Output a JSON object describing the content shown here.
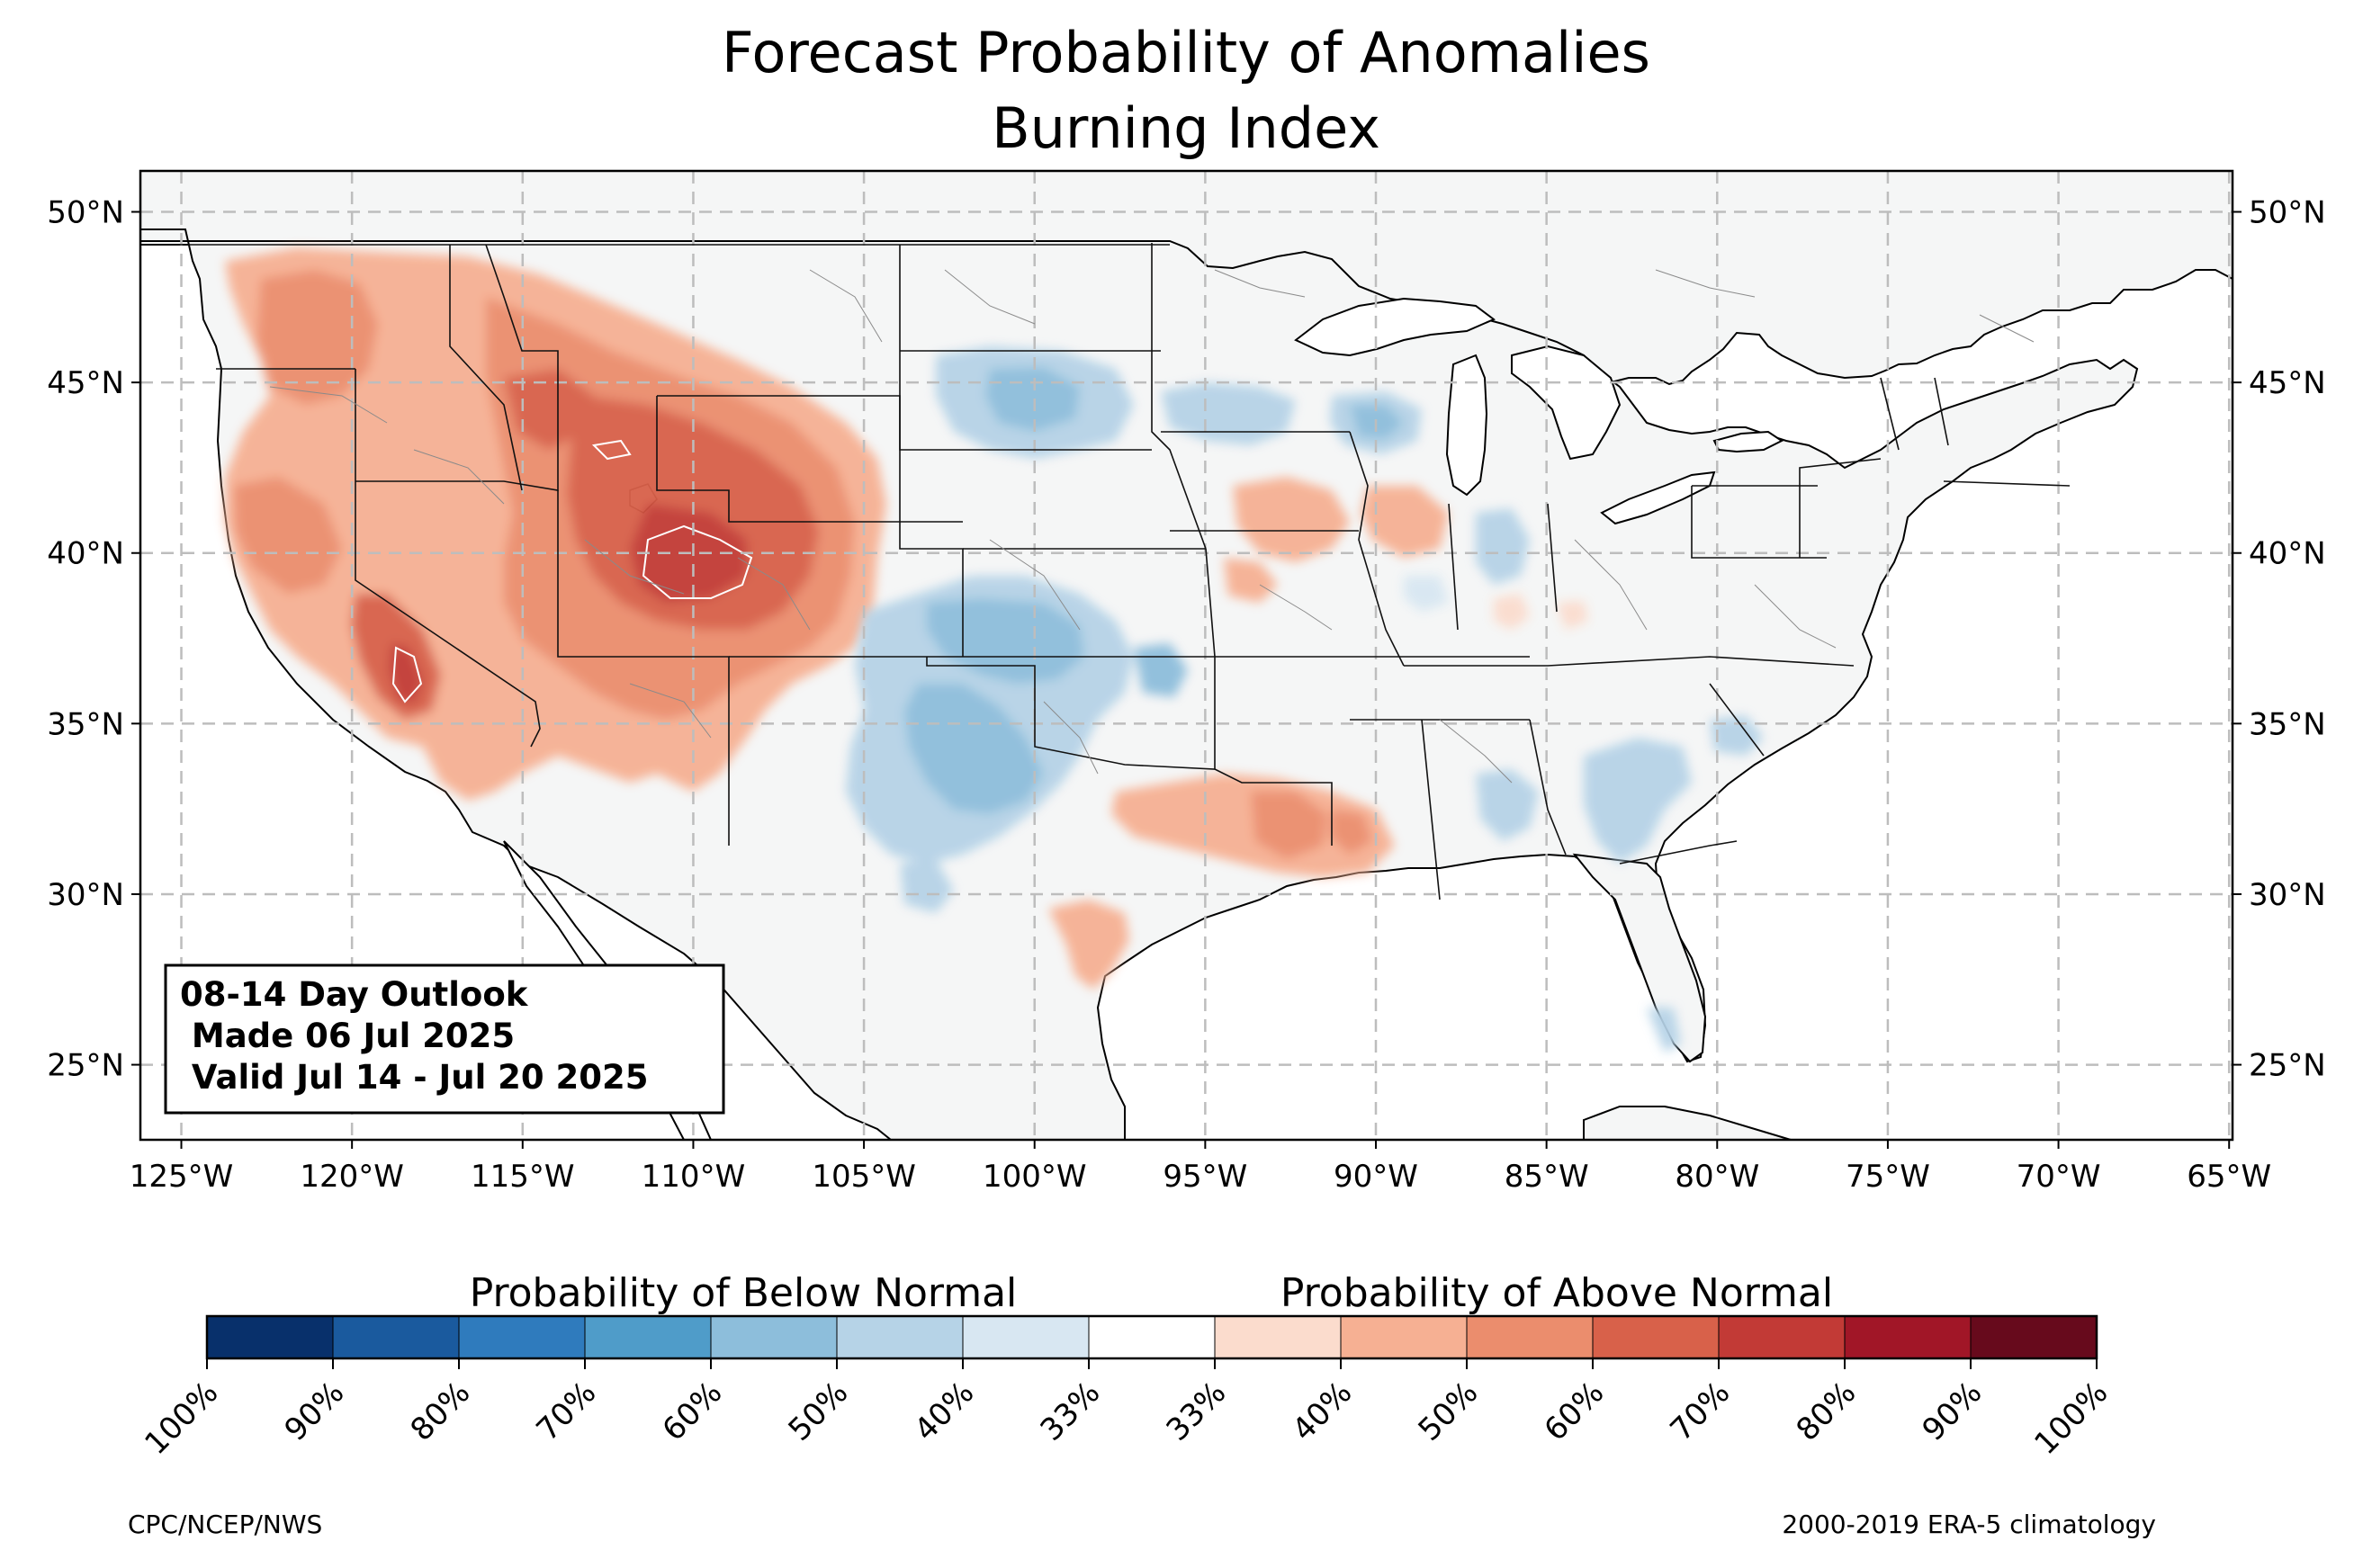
{
  "title_line1": "Forecast Probability of Anomalies",
  "title_line2": "Burning Index",
  "map": {
    "lon_range": [
      -126.2,
      -64.9
    ],
    "lat_range": [
      22.8,
      51.2
    ],
    "lon_ticks": [
      {
        "value": -125,
        "label": "125°W"
      },
      {
        "value": -120,
        "label": "120°W"
      },
      {
        "value": -115,
        "label": "115°W"
      },
      {
        "value": -110,
        "label": "110°W"
      },
      {
        "value": -105,
        "label": "105°W"
      },
      {
        "value": -100,
        "label": "100°W"
      },
      {
        "value": -95,
        "label": "95°W"
      },
      {
        "value": -90,
        "label": "90°W"
      },
      {
        "value": -85,
        "label": "85°W"
      },
      {
        "value": -80,
        "label": "80°W"
      },
      {
        "value": -75,
        "label": "75°W"
      },
      {
        "value": -70,
        "label": "70°W"
      },
      {
        "value": -65,
        "label": "65°W"
      }
    ],
    "lat_ticks": [
      {
        "value": 50,
        "label": "50°N"
      },
      {
        "value": 45,
        "label": "45°N"
      },
      {
        "value": 40,
        "label": "40°N"
      },
      {
        "value": 35,
        "label": "35°N"
      },
      {
        "value": 30,
        "label": "30°N"
      },
      {
        "value": 25,
        "label": "25°N"
      }
    ],
    "gridlines": true,
    "land_color": "#f5f6f6",
    "above_normal_areas": [
      {
        "region": "Pacific Northwest / Oregon",
        "lon": -119.5,
        "lat": 44.5,
        "probability": "40-60%"
      },
      {
        "region": "Idaho / Montana",
        "lon": -114,
        "lat": 45.5,
        "probability": "40-60%"
      },
      {
        "region": "Northern California / Nevada",
        "lon": -120,
        "lat": 40,
        "probability": "40-60%"
      },
      {
        "region": "Southern Sierra Nevada",
        "lon": -118.5,
        "lat": 36.3,
        "probability": "60-80%"
      },
      {
        "region": "Great Basin / Utah",
        "lon": -112,
        "lat": 39,
        "probability": "50-70%"
      },
      {
        "region": "Wyoming / Colorado",
        "lon": -107.5,
        "lat": 40,
        "probability": "60-80%"
      },
      {
        "region": "Arizona / New Mexico",
        "lon": -109,
        "lat": 35.5,
        "probability": "40-60%"
      },
      {
        "region": "Iowa / Illinois",
        "lon": -92.5,
        "lat": 41.2,
        "probability": "33-50%"
      },
      {
        "region": "Louisiana / Mississippi",
        "lon": -92,
        "lat": 31.5,
        "probability": "40-60%"
      },
      {
        "region": "East Texas",
        "lon": -96,
        "lat": 31.2,
        "probability": "33-50%"
      },
      {
        "region": "South Texas coast",
        "lon": -98,
        "lat": 28.2,
        "probability": "33-50%"
      }
    ],
    "below_normal_areas": [
      {
        "region": "South Dakota",
        "lon": -100,
        "lat": 44.8,
        "probability": "40-60%"
      },
      {
        "region": "Minnesota / Wisconsin",
        "lon": -93,
        "lat": 44.6,
        "probability": "33-50%"
      },
      {
        "region": "Wisconsin",
        "lon": -89.5,
        "lat": 44.1,
        "probability": "40-50%"
      },
      {
        "region": "Kansas / Oklahoma",
        "lon": -101,
        "lat": 37.2,
        "probability": "40-60%"
      },
      {
        "region": "Texas Panhandle / West Texas",
        "lon": -101.5,
        "lat": 33.5,
        "probability": "40-60%"
      },
      {
        "region": "Indiana / Ohio",
        "lon": -84.5,
        "lat": 40.2,
        "probability": "33-50%"
      },
      {
        "region": "Georgia / South Carolina",
        "lon": -81.5,
        "lat": 32.5,
        "probability": "33-50%"
      }
    ]
  },
  "colorbar": {
    "below_title": "Probability of Below Normal",
    "above_title": "Probability of Above Normal",
    "colors": [
      "#08306b",
      "#1a5a9e",
      "#2f7bbd",
      "#4f9cc9",
      "#8dbedb",
      "#b6d3e7",
      "#d8e7f2",
      "#ffffff",
      "#fbdccd",
      "#f6b093",
      "#eb8d6d",
      "#d8614a",
      "#c23a36",
      "#a11627",
      "#670a1c"
    ],
    "tick_labels": [
      "100%",
      "90%",
      "80%",
      "70%",
      "60%",
      "50%",
      "40%",
      "33%",
      "33%",
      "40%",
      "50%",
      "60%",
      "70%",
      "80%",
      "90%",
      "100%"
    ]
  },
  "outlook_box": {
    "line1": "08-14 Day Outlook",
    "line2": " Made 06 Jul 2025",
    "line3": " Valid Jul 14 - Jul 20 2025"
  },
  "credit_left": "CPC/NCEP/NWS",
  "credit_right": "2000-2019 ERA-5 climatology"
}
